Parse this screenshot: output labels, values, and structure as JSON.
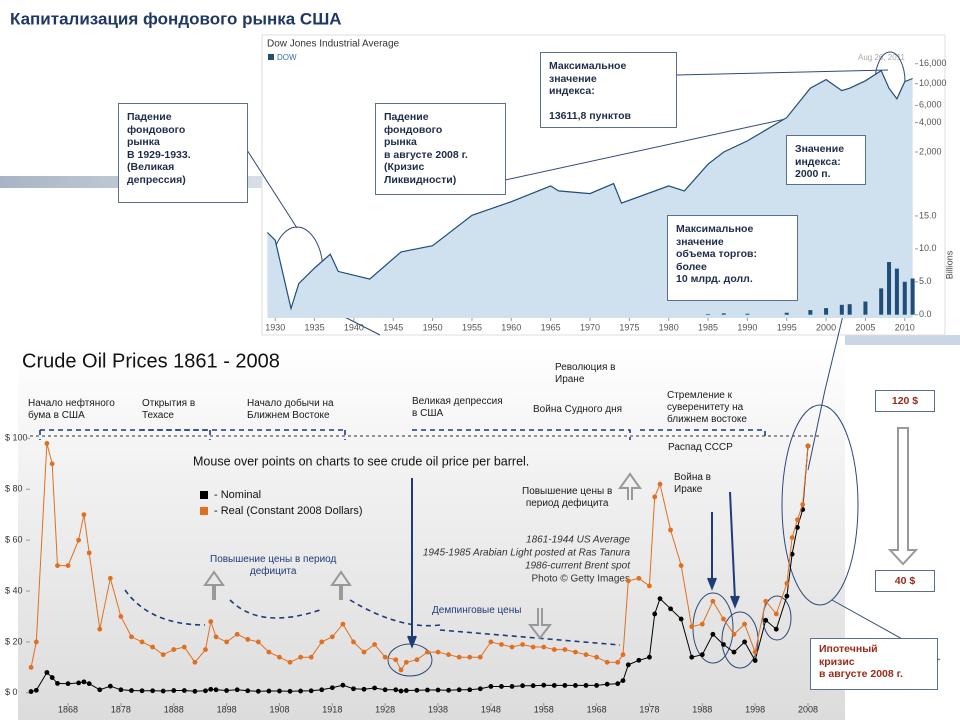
{
  "title": "Капитализация фондового рынка США",
  "chart_data": [
    {
      "type": "line",
      "title": "Dow Jones Industrial Average",
      "date": "Aug 26, 2011",
      "log_scale": true,
      "x": [
        1929,
        1930,
        1932,
        1933,
        1935,
        1937,
        1938,
        1942,
        1946,
        1950,
        1955,
        1960,
        1965,
        1966,
        1970,
        1973,
        1974,
        1980,
        1982,
        1985,
        1987,
        1990,
        1995,
        1998,
        2000,
        2002,
        2003,
        2005,
        2007,
        2008,
        2009,
        2010,
        2011
      ],
      "series": [
        {
          "name": "DOW",
          "color": "#1f4e79",
          "values": [
            300,
            250,
            50,
            90,
            130,
            180,
            120,
            100,
            190,
            220,
            450,
            620,
            900,
            800,
            750,
            950,
            600,
            900,
            800,
            1500,
            2000,
            2600,
            4500,
            9000,
            11000,
            8500,
            9000,
            10700,
            13600,
            9000,
            7000,
            10500,
            11300
          ]
        },
        {
          "color": "#1f4e79",
          "type": "bar",
          "axis": "y2",
          "values": [
            null,
            null,
            null,
            null,
            null,
            null,
            null,
            null,
            null,
            null,
            null,
            null,
            null,
            null,
            null,
            null,
            null,
            null,
            null,
            0.1,
            0.2,
            0.15,
            0.3,
            0.7,
            1,
            1.5,
            1.6,
            2,
            4,
            8,
            7,
            5,
            5.5
          ]
        }
      ],
      "xlim": [
        1928.7,
        2011.3
      ],
      "xticks": [
        1930,
        1935,
        1940,
        1945,
        1950,
        1955,
        1960,
        1965,
        1970,
        1975,
        1980,
        1985,
        1990,
        1995,
        2000,
        2005,
        2010
      ],
      "ylim": [
        40,
        28000
      ],
      "yticks": [
        {
          "value": 16000,
          "label": "16,000"
        },
        {
          "value": 10000,
          "label": "10,000"
        },
        {
          "value": 6000,
          "label": "6,000"
        },
        {
          "value": 4000,
          "label": "4,000"
        },
        {
          "value": 2000,
          "label": "2,000"
        }
      ],
      "y2label": "Billions",
      "y2lim": [
        -0.5,
        15.6
      ],
      "y2ticks": [
        {
          "value": 15,
          "label": "15.0"
        },
        {
          "value": 10,
          "label": "10.0"
        },
        {
          "value": 5,
          "label": "5.0"
        },
        {
          "value": 0,
          "label": "0.0"
        }
      ],
      "annotations": [
        "Падение\nфондового\nрынка\nВ 1929-1933.\n(Великая\nдепрессия)",
        "Падение\nфондового\nрынка\nв августе 2008 г.\n(Кризис\nЛиквидности)",
        "Максимальное\nзначение\nиндекса:\n\n13611,8 пунктов",
        "Значение\nиндекса:\n2000 п.",
        "Максимальное\nзначение\nобъема торгов:\nболее\n10 млрд. долл."
      ]
    },
    {
      "type": "line",
      "title": "Crude Oil Prices 1861 - 2008",
      "subtitle": "Mouse over points on charts to see crude oil price per barrel.",
      "x": [
        1861,
        1862,
        1864,
        1865,
        1866,
        1868,
        1870,
        1871,
        1872,
        1874,
        1876,
        1878,
        1880,
        1882,
        1884,
        1886,
        1888,
        1890,
        1892,
        1894,
        1895,
        1896,
        1898,
        1900,
        1902,
        1904,
        1906,
        1908,
        1910,
        1912,
        1914,
        1916,
        1918,
        1920,
        1922,
        1924,
        1926,
        1928,
        1930,
        1931,
        1932,
        1934,
        1936,
        1938,
        1940,
        1942,
        1944,
        1946,
        1948,
        1950,
        1952,
        1954,
        1956,
        1958,
        1960,
        1962,
        1964,
        1966,
        1968,
        1970,
        1972,
        1973,
        1974,
        1976,
        1978,
        1979,
        1980,
        1982,
        1984,
        1986,
        1988,
        1990,
        1992,
        1994,
        1996,
        1998,
        2000,
        2002,
        2004,
        2005,
        2006,
        2007,
        2008
      ],
      "series": [
        {
          "name": "- Nominal",
          "color": "#000000",
          "values": [
            0.5,
            1,
            8,
            6,
            3.7,
            3.6,
            3.9,
            4.3,
            3.6,
            1.2,
            2.6,
            1.2,
            0.9,
            0.8,
            0.8,
            0.7,
            0.9,
            0.9,
            0.6,
            0.8,
            1.4,
            1.2,
            0.9,
            1.2,
            0.8,
            0.6,
            0.7,
            0.7,
            0.6,
            0.7,
            0.8,
            1.2,
            2,
            3,
            1.6,
            1.4,
            1.9,
            1.2,
            1.2,
            0.7,
            0.9,
            1,
            1.1,
            1.1,
            1,
            1.2,
            1.2,
            1.6,
            2.5,
            2.5,
            2.5,
            2.8,
            2.8,
            3,
            2.9,
            2.9,
            2.9,
            2.9,
            2.9,
            3.4,
            3.6,
            4.8,
            11,
            12.8,
            14,
            31,
            37,
            33,
            29,
            14,
            15,
            23,
            19,
            16,
            20,
            12.7,
            28.5,
            25,
            38,
            54.5,
            65,
            72,
            97
          ]
        },
        {
          "name": "- Real  (Constant 2008 Dollars)",
          "color": "#e07020",
          "values": [
            10,
            20,
            98,
            90,
            50,
            50,
            60,
            70,
            55,
            25,
            45,
            30,
            22,
            20,
            18,
            15,
            17,
            18,
            12,
            17,
            28,
            22,
            20,
            23,
            21,
            20,
            16,
            14,
            12,
            14,
            14,
            20,
            22,
            27,
            20,
            16,
            19,
            14,
            13,
            9,
            12,
            13,
            16,
            16,
            15,
            14,
            14,
            14,
            20,
            19,
            18,
            19,
            18,
            18,
            17,
            17,
            16,
            15,
            14,
            12,
            12,
            15,
            44,
            45,
            42,
            77,
            82,
            64,
            50,
            26,
            27,
            36,
            29,
            23,
            27,
            16,
            36,
            31,
            43,
            61,
            68,
            74,
            97
          ]
        }
      ],
      "xlim": [
        1860.8,
        2015
      ],
      "xticks": [
        1868,
        1878,
        1888,
        1898,
        1908,
        1918,
        1928,
        1938,
        1948,
        1958,
        1968,
        1978,
        1988,
        1998,
        2008
      ],
      "ylim": [
        -4,
        108
      ],
      "yticks": [
        {
          "value": 0,
          "label": "$ 0"
        },
        {
          "value": 20,
          "label": "$ 20"
        },
        {
          "value": 40,
          "label": "$ 40"
        },
        {
          "value": 60,
          "label": "$ 60"
        },
        {
          "value": 80,
          "label": "$ 80"
        },
        {
          "value": 100,
          "label": "$ 100"
        }
      ],
      "notes": [
        "1861-1944 US Average",
        "1945-1985 Arabian Light posted at Ras Tanura",
        "1986-current Brent spot",
        "Photo © Getty Images"
      ],
      "annotations": [
        "Начало нефтяного\nбума в США",
        "Открытия в\nТехасе",
        "Начало добычи на\nБлижнем Востоке",
        "Великая депрессия\nв США",
        "Война Судного дня",
        "Революция в\nИране",
        "Стремление к\nсуверенитету на\nближнем востоке",
        "Распад СССР",
        "Война в\nИраке",
        "Повышение цены в\nпериод дефицита",
        "Повышение цены в период\nдефицита",
        "Демпинговые цены"
      ],
      "callouts": [
        "120 $",
        "40 $",
        "Ипотечный\nкризис\nв августе 2008 г."
      ]
    }
  ]
}
